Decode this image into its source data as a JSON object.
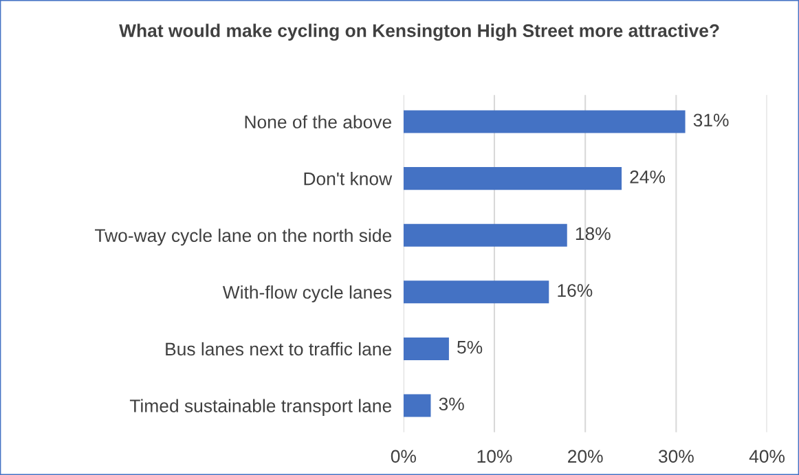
{
  "chart_data": {
    "type": "bar",
    "orientation": "horizontal",
    "title": "What would make cycling on Kensington High Street more attractive?",
    "categories": [
      "None of the above",
      "Don't know",
      "Two-way cycle lane on the north side",
      "With-flow cycle lanes",
      "Bus lanes next to traffic lane",
      "Timed sustainable transport lane"
    ],
    "values": [
      31,
      24,
      18,
      16,
      5,
      3
    ],
    "value_labels": [
      "31%",
      "24%",
      "18%",
      "16%",
      "5%",
      "3%"
    ],
    "color": "#4472c4",
    "xlim": [
      0,
      40
    ],
    "xticks": [
      {
        "value": 0,
        "label": "0%"
      },
      {
        "value": 10,
        "label": "10%"
      },
      {
        "value": 20,
        "label": "20%"
      },
      {
        "value": 30,
        "label": "30%"
      },
      {
        "value": 40,
        "label": "40%"
      }
    ],
    "grid": "x"
  }
}
